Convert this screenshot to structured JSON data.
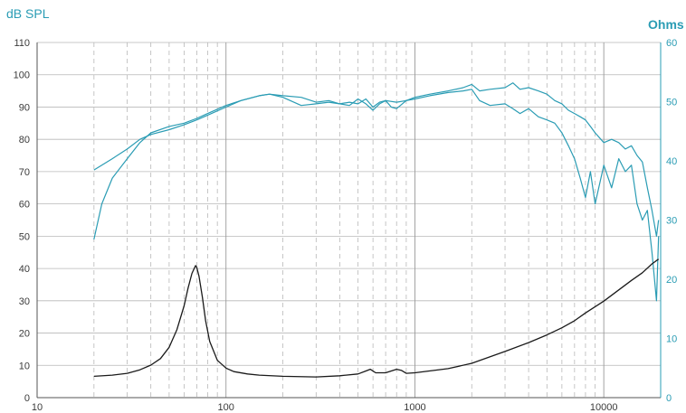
{
  "chart_data": {
    "type": "line",
    "x_scale": "log",
    "xlim": [
      10,
      20000
    ],
    "ylim_left": [
      0,
      110
    ],
    "ylim_right": [
      0,
      60
    ],
    "ylabel_left": "dB SPL",
    "ylabel_right": "Ohms",
    "x_tick_labels": [
      "10",
      "100",
      "1000",
      "10000"
    ],
    "x_tick_values": [
      10,
      100,
      1000,
      10000
    ],
    "y_left_ticks": [
      "0",
      "10",
      "20",
      "30",
      "40",
      "50",
      "60",
      "70",
      "80",
      "90",
      "100",
      "110"
    ],
    "y_left_tick_values": [
      0,
      10,
      20,
      30,
      40,
      50,
      60,
      70,
      80,
      90,
      100,
      110
    ],
    "y_right_ticks": [
      "0",
      "10",
      "20",
      "30",
      "40",
      "50",
      "60"
    ],
    "y_right_tick_values": [
      0,
      10,
      20,
      30,
      40,
      50,
      60
    ],
    "grid": true,
    "colors": {
      "spl": "#2a9cb4",
      "impedance": "#1a1a1a",
      "grid": "#b8b8b8"
    },
    "series": [
      {
        "axis": "left",
        "color": "#2a9cb4",
        "x": [
          20,
          25,
          30,
          35,
          40,
          50,
          60,
          70,
          80,
          100,
          120,
          150,
          170,
          200,
          250,
          300,
          350,
          400,
          450,
          500,
          550,
          600,
          650,
          700,
          800,
          900,
          1000,
          1200,
          1500,
          1800,
          2000,
          2200,
          2500,
          3000,
          3300,
          3600,
          4000,
          4500,
          5000,
          5500,
          6000,
          6500,
          7000,
          7500,
          8000,
          8500,
          9000,
          10000,
          11000,
          12000,
          13000,
          14000,
          15000,
          16000,
          17000,
          18000,
          19000,
          19500
        ],
        "y": [
          70.5,
          74,
          77,
          80,
          81.5,
          83,
          84.5,
          86,
          87.5,
          90,
          92,
          93.5,
          94,
          93.5,
          93,
          91.5,
          92,
          91,
          91.5,
          91,
          92.5,
          90,
          91.5,
          92,
          91.5,
          92,
          93,
          94,
          95,
          96,
          97,
          95,
          95.5,
          96,
          97.5,
          95.5,
          96,
          95,
          94,
          92,
          91,
          89,
          88,
          87,
          86,
          84,
          82,
          79,
          80,
          79,
          77,
          78,
          75,
          73,
          65,
          58,
          50,
          55
        ]
      },
      {
        "axis": "left",
        "color": "#2a9cb4",
        "x": [
          20,
          22,
          25,
          30,
          35,
          40,
          50,
          60,
          70,
          80,
          100,
          120,
          150,
          170,
          200,
          250,
          300,
          350,
          400,
          450,
          500,
          550,
          600,
          650,
          700,
          750,
          800,
          900,
          1000,
          1200,
          1500,
          1800,
          2000,
          2200,
          2500,
          3000,
          3300,
          3600,
          4000,
          4500,
          5000,
          5500,
          6000,
          6500,
          7000,
          7500,
          8000,
          8500,
          9000,
          10000,
          11000,
          12000,
          13000,
          14000,
          15000,
          16000,
          17000,
          18000,
          19000,
          19500
        ],
        "y": [
          49,
          60,
          68,
          74,
          79,
          82,
          84,
          85,
          86.5,
          88,
          90.5,
          92,
          93.5,
          94,
          93,
          90.5,
          91,
          91.5,
          91,
          90.5,
          92.5,
          91,
          89,
          91,
          92,
          90,
          89.5,
          92,
          92.5,
          93.5,
          94.5,
          95,
          95.5,
          92,
          90.5,
          91,
          89.5,
          88,
          89.5,
          87,
          86,
          85,
          82,
          78,
          74,
          68,
          62,
          70,
          60,
          72,
          65,
          74,
          70,
          72,
          60,
          55,
          58,
          45,
          30,
          50
        ]
      },
      {
        "axis": "right",
        "color": "#1a1a1a",
        "x": [
          20,
          25,
          30,
          35,
          40,
          45,
          50,
          55,
          60,
          63,
          66,
          69,
          70,
          72,
          75,
          78,
          82,
          90,
          100,
          110,
          130,
          150,
          200,
          300,
          400,
          500,
          550,
          580,
          620,
          700,
          800,
          850,
          900,
          1000,
          1500,
          2000,
          3000,
          4000,
          5000,
          6000,
          7000,
          8000,
          10000,
          12000,
          14000,
          16000,
          18000,
          19500
        ],
        "y": [
          3.6,
          3.8,
          4.1,
          4.7,
          5.5,
          6.6,
          8.5,
          11.5,
          15.5,
          18.5,
          21,
          22.3,
          22,
          20.5,
          17,
          13,
          9.5,
          6.3,
          5,
          4.4,
          4.0,
          3.8,
          3.6,
          3.5,
          3.7,
          4.0,
          4.5,
          4.8,
          4.2,
          4.2,
          4.8,
          4.6,
          4.1,
          4.2,
          4.9,
          5.8,
          7.8,
          9.3,
          10.6,
          11.8,
          13,
          14.3,
          16.3,
          18.2,
          19.8,
          21.1,
          22.6,
          23.4
        ]
      }
    ]
  }
}
